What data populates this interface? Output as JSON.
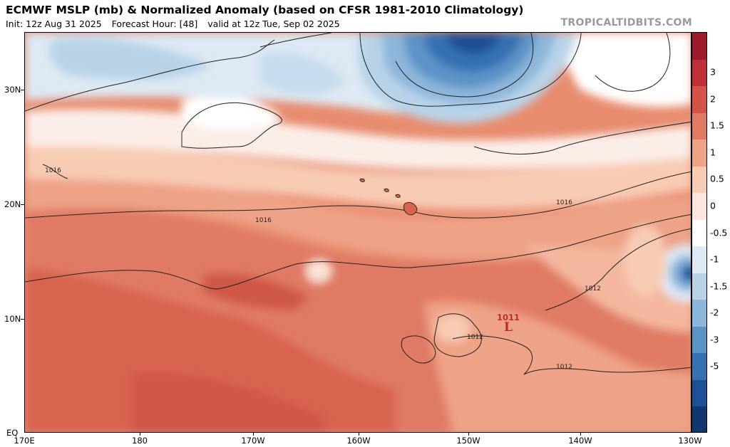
{
  "title": "ECMWF MSLP (mb) & Normalized Anomaly (based on CFSR 1981-2010 Climatology)",
  "subtitle": {
    "init": "Init: 12z Aug 31 2025",
    "forecast_hour": "Forecast Hour: [48]",
    "valid": "valid at 12z Tue, Sep 02 2025"
  },
  "brand": "TROPICALTIDBITS.COM",
  "lat_labels": [
    "30N",
    "20N",
    "10N",
    "EQ"
  ],
  "lon_labels": [
    "170E",
    "180",
    "170W",
    "160W",
    "150W",
    "140W",
    "130W"
  ],
  "colorbar": {
    "labels": [
      "3",
      "2",
      "1.5",
      "1",
      "0.5",
      "0",
      "-0.5",
      "-1",
      "-1.5",
      "-2",
      "-3",
      "-5"
    ],
    "colors": [
      "#9b1b2a",
      "#c02f37",
      "#d45247",
      "#e07a63",
      "#eea286",
      "#f8cbb4",
      "#fde6dc",
      "#ffffff",
      "#dde9f4",
      "#b8d3e8",
      "#8cb6da",
      "#5b93c7",
      "#3671b2",
      "#1d5096",
      "#123670"
    ]
  },
  "contour_labels": [
    "1016",
    "1016",
    "1016",
    "1012",
    "1012",
    "1012"
  ],
  "low": {
    "value": "1011",
    "symbol": "L"
  }
}
